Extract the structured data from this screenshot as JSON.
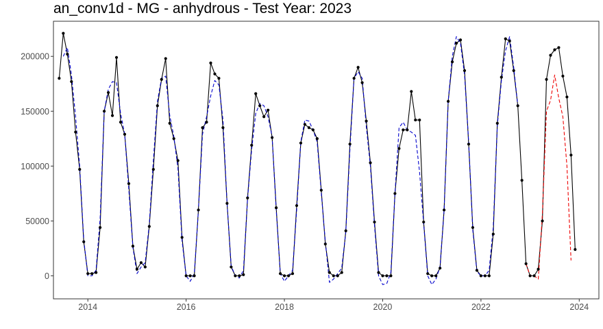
{
  "chart_data": {
    "type": "line",
    "title": "an_conv1d - MG - anhydrous - Test Year: 2023",
    "xlabel": "",
    "ylabel": "",
    "xlim": [
      2013.3,
      2024.4
    ],
    "ylim": [
      -21000,
      232000
    ],
    "x_ticks": [
      2014,
      2016,
      2018,
      2020,
      2022,
      2024
    ],
    "x_tick_labels": [
      "2014",
      "2016",
      "2018",
      "2020",
      "2022",
      "2024"
    ],
    "y_ticks": [
      0,
      50000,
      100000,
      150000,
      200000
    ],
    "y_tick_labels": [
      "0",
      "50000",
      "100000",
      "150000",
      "200000"
    ],
    "grid": false,
    "legend": "none",
    "x_start": "2013-06",
    "series": [
      {
        "role": "actual",
        "color": "#000000",
        "style": "solid",
        "markers": true,
        "values": [
          180000,
          221000,
          202000,
          177000,
          131000,
          97000,
          31000,
          2000,
          2000,
          3000,
          44000,
          150000,
          167000,
          146000,
          199000,
          140000,
          129000,
          84000,
          27000,
          6000,
          12000,
          8000,
          45000,
          97000,
          155000,
          179000,
          198000,
          139000,
          125000,
          105000,
          35000,
          0,
          0,
          0,
          60000,
          135000,
          140000,
          194000,
          184000,
          180000,
          135000,
          66000,
          8000,
          0,
          0,
          1000,
          71000,
          119000,
          166000,
          155000,
          145000,
          151000,
          126000,
          62000,
          2000,
          0,
          0,
          2000,
          64000,
          121000,
          138000,
          135000,
          133000,
          125000,
          78000,
          29000,
          3000,
          0,
          0,
          3000,
          41000,
          120000,
          180000,
          190000,
          176000,
          141000,
          103000,
          49000,
          3000,
          0,
          0,
          0,
          75000,
          116000,
          133000,
          133000,
          168000,
          142000,
          142000,
          49000,
          2000,
          0,
          0,
          7000,
          60000,
          159000,
          195000,
          212000,
          215000,
          187000,
          120000,
          44000,
          5000,
          0,
          0,
          0,
          38000,
          139000,
          181000,
          216000,
          214000,
          187000,
          155000,
          87000,
          11000,
          0,
          0,
          6000,
          50000,
          179000,
          201000,
          206000,
          208000,
          182000,
          163000,
          110000,
          24000
        ]
      },
      {
        "role": "fitted",
        "color": "#0000cc",
        "style": "dashed",
        "values": [
          null,
          200000,
          208000,
          183000,
          145000,
          100000,
          33000,
          0,
          0,
          5000,
          52000,
          150000,
          170000,
          177000,
          176000,
          148000,
          129000,
          79000,
          26000,
          2000,
          8000,
          12000,
          47000,
          105000,
          159000,
          180000,
          182000,
          146000,
          127000,
          98000,
          32000,
          0,
          -5000,
          2000,
          60000,
          129000,
          145000,
          164000,
          178000,
          174000,
          142000,
          66000,
          9000,
          0,
          -2000,
          5000,
          70000,
          115000,
          148000,
          157000,
          155000,
          145000,
          127000,
          60000,
          2000,
          -5000,
          0,
          5000,
          60000,
          122000,
          142000,
          141000,
          133000,
          122000,
          76000,
          31000,
          -6000,
          -3000,
          2000,
          7000,
          40000,
          115000,
          180000,
          186000,
          180000,
          136000,
          100000,
          46000,
          0,
          -8000,
          -7000,
          3000,
          75000,
          135000,
          140000,
          133000,
          131000,
          128000,
          95000,
          48000,
          0,
          -8000,
          -3000,
          8000,
          60000,
          159000,
          200000,
          218000,
          212000,
          183000,
          122000,
          42000,
          4000,
          0,
          0,
          5000,
          44000,
          137000,
          178000,
          205000,
          218000,
          190000,
          155000,
          null,
          null
        ]
      },
      {
        "role": "forecast",
        "color": "#ee0000",
        "style": "dashed",
        "values_start": "2022-12",
        "values": [
          11000,
          0,
          0,
          -3000,
          56000,
          150000,
          160000,
          183000,
          162000,
          145000,
          100000,
          14000
        ]
      }
    ]
  }
}
